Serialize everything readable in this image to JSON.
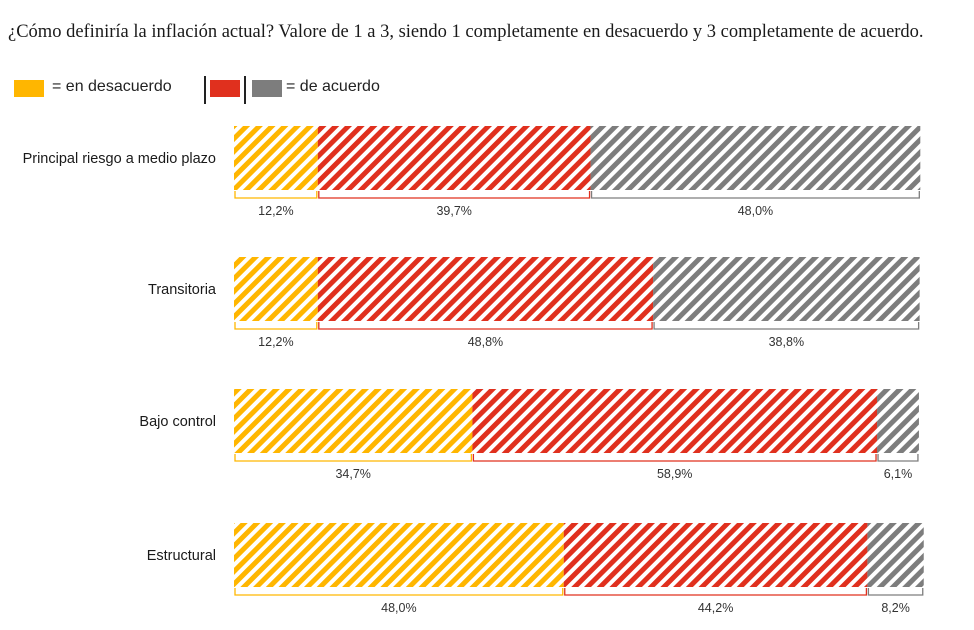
{
  "title": "¿Cómo definiría la inflación actual? Valore de 1 a 3, siendo 1 completamente en desacuerdo y 3 completamente de acuerdo.",
  "legend": {
    "disagree_label": "= en desacuerdo",
    "agree_label": "= de acuerdo"
  },
  "colors": {
    "disagree": "#FFB600",
    "neutral": "#E0301E",
    "agree": "#7D7D7D",
    "neutral_bracket": "#E0301E"
  },
  "chart_data": {
    "type": "bar",
    "orientation": "horizontal",
    "stacked": true,
    "percent": true,
    "categories": [
      "Principal riesgo a medio plazo",
      "Transitoria",
      "Bajo control",
      "Estructural"
    ],
    "series": [
      {
        "name": "en desacuerdo",
        "values": [
          12.2,
          12.2,
          34.7,
          48.0
        ],
        "labels": [
          "12,2%",
          "12,2%",
          "34,7%",
          "48,0%"
        ]
      },
      {
        "values": [
          39.7,
          48.8,
          58.9,
          44.2
        ],
        "labels": [
          "39,7%",
          "48,8%",
          "58,9%",
          "44,2%"
        ]
      },
      {
        "name": "de acuerdo",
        "values": [
          48.0,
          38.8,
          6.1,
          8.2
        ],
        "labels": [
          "48,0%",
          "38,8%",
          "6,1%",
          "8,2%"
        ]
      }
    ],
    "xlim": [
      0,
      100
    ],
    "grid": false,
    "legend_position": "top-left"
  }
}
